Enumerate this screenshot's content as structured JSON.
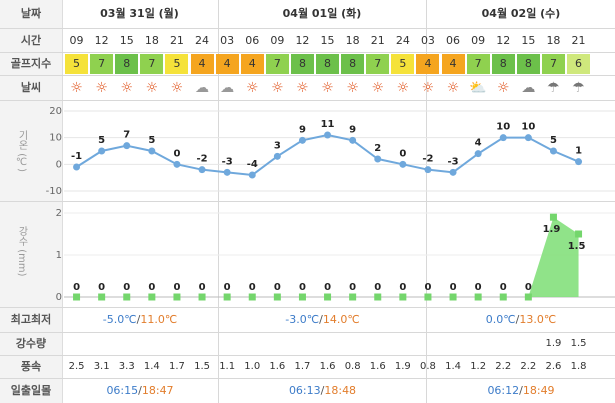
{
  "labels": {
    "date": "날짜",
    "time": "시간",
    "golf": "골프지수",
    "weather": "날씨",
    "temp_axis": "기온 (℃)",
    "rain_axis": "강수 (mm)",
    "minmax": "최고최저",
    "rainfall": "강수량",
    "wind": "풍속",
    "sunrise": "일출일몰"
  },
  "dates": [
    "03월 31일 (월)",
    "04월 01일 (화)",
    "04월 02일 (수)"
  ],
  "times": [
    "09",
    "12",
    "15",
    "18",
    "21",
    "24",
    "03",
    "06",
    "09",
    "12",
    "15",
    "18",
    "21",
    "24",
    "03",
    "06",
    "09",
    "12",
    "15",
    "18",
    "21"
  ],
  "golf_index": [
    5,
    7,
    8,
    7,
    5,
    4,
    4,
    4,
    7,
    8,
    8,
    8,
    7,
    5,
    4,
    4,
    7,
    8,
    8,
    7,
    6
  ],
  "weather": [
    "sun",
    "sun",
    "sun",
    "sun",
    "sun",
    "partly-cloudy-night",
    "partly-cloudy-night",
    "sun",
    "sun",
    "sun",
    "sun",
    "sun",
    "sun",
    "sun",
    "sun",
    "sun",
    "partly-cloudy",
    "sun",
    "cloudy",
    "rain",
    "rain"
  ],
  "temp_ticks": [
    "20",
    "10",
    "0",
    "-10"
  ],
  "rain_ticks": [
    "2",
    "1",
    "0"
  ],
  "chart_data": [
    {
      "type": "line",
      "ylabel": "기온 (℃)",
      "ylim": [
        -10,
        20
      ],
      "x": [
        "09",
        "12",
        "15",
        "18",
        "21",
        "24",
        "03",
        "06",
        "09",
        "12",
        "15",
        "18",
        "21",
        "24",
        "03",
        "06",
        "09",
        "12",
        "15",
        "18",
        "21"
      ],
      "values": [
        -1,
        5,
        7,
        5,
        0,
        -2,
        -3,
        -4,
        3,
        9,
        11,
        9,
        2,
        0,
        -2,
        -3,
        4,
        10,
        10,
        5,
        1
      ]
    },
    {
      "type": "area",
      "ylabel": "강수 (mm)",
      "ylim": [
        0,
        2
      ],
      "x": [
        "09",
        "12",
        "15",
        "18",
        "21",
        "24",
        "03",
        "06",
        "09",
        "12",
        "15",
        "18",
        "21",
        "24",
        "03",
        "06",
        "09",
        "12",
        "15",
        "18",
        "21"
      ],
      "values": [
        0,
        0,
        0,
        0,
        0,
        0,
        0,
        0,
        0,
        0,
        0,
        0,
        0,
        0,
        0,
        0,
        0,
        0,
        0,
        1.9,
        1.5
      ]
    }
  ],
  "minmax": [
    {
      "min": "-5.0℃",
      "sep": "/",
      "max": "11.0℃"
    },
    {
      "min": "-3.0℃",
      "sep": "/",
      "max": "14.0℃"
    },
    {
      "min": "0.0℃",
      "sep": "/",
      "max": "13.0℃"
    }
  ],
  "rainfall": [
    "",
    "",
    "",
    "",
    "",
    "",
    "",
    "",
    "",
    "",
    "",
    "",
    "",
    "",
    "",
    "",
    "",
    "",
    "",
    "1.9",
    "1.5"
  ],
  "wind": [
    "2.5",
    "3.1",
    "3.3",
    "1.4",
    "1.7",
    "1.5",
    "1.1",
    "1.0",
    "1.6",
    "1.7",
    "1.6",
    "0.8",
    "1.6",
    "1.9",
    "0.8",
    "1.4",
    "1.2",
    "2.2",
    "2.2",
    "2.6",
    "1.8"
  ],
  "sun": [
    {
      "rise": "06:15",
      "sep": "/",
      "set": "18:47"
    },
    {
      "rise": "06:13",
      "sep": "/",
      "set": "18:48"
    },
    {
      "rise": "06:12",
      "sep": "/",
      "set": "18:49"
    }
  ],
  "colors": {
    "golf_4": "#f5a51f",
    "golf_5": "#f5e23a",
    "golf_6": "#cfe87c",
    "golf_7": "#8fd14f",
    "golf_8": "#6cc04a",
    "line": "#6fa8dc",
    "area": "#84e07c"
  }
}
